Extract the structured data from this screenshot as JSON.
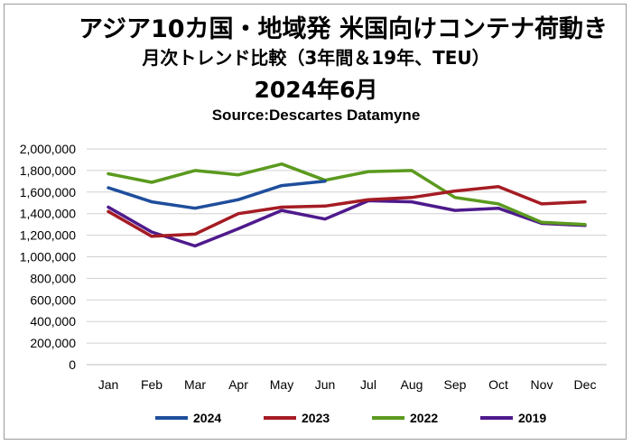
{
  "chart_data": {
    "type": "line",
    "title_lines": [
      "アジア10カ国・地域発 米国向けコンテナ荷動き",
      "月次トレンド比較（3年間＆19年、TEU）",
      "2024年6月",
      "Source:Descartes Datamyne"
    ],
    "categories": [
      "Jan",
      "Feb",
      "Mar",
      "Apr",
      "May",
      "Jun",
      "Jul",
      "Aug",
      "Sep",
      "Oct",
      "Nov",
      "Dec"
    ],
    "ylim": [
      0,
      2000000
    ],
    "yticks": [
      "2,000,000",
      "1,800,000",
      "1,600,000",
      "1,400,000",
      "1,200,000",
      "1,000,000",
      "800,000",
      "600,000",
      "400,000",
      "200,000",
      "0"
    ],
    "grid": true,
    "legend_position": "bottom",
    "series": [
      {
        "name": "2024",
        "color": "#1f4e9c",
        "values": [
          1640000,
          1510000,
          1450000,
          1530000,
          1660000,
          1700000,
          null,
          null,
          null,
          null,
          null,
          null
        ]
      },
      {
        "name": "2023",
        "color": "#a51c24",
        "values": [
          1420000,
          1190000,
          1210000,
          1400000,
          1460000,
          1470000,
          1530000,
          1550000,
          1610000,
          1650000,
          1490000,
          1510000
        ]
      },
      {
        "name": "2022",
        "color": "#5b9a1e",
        "values": [
          1770000,
          1690000,
          1800000,
          1760000,
          1860000,
          1710000,
          1790000,
          1800000,
          1550000,
          1490000,
          1320000,
          1300000
        ]
      },
      {
        "name": "2019",
        "color": "#4e1a8c",
        "values": [
          1460000,
          1230000,
          1100000,
          1260000,
          1430000,
          1350000,
          1520000,
          1510000,
          1430000,
          1450000,
          1310000,
          1290000
        ]
      }
    ]
  }
}
